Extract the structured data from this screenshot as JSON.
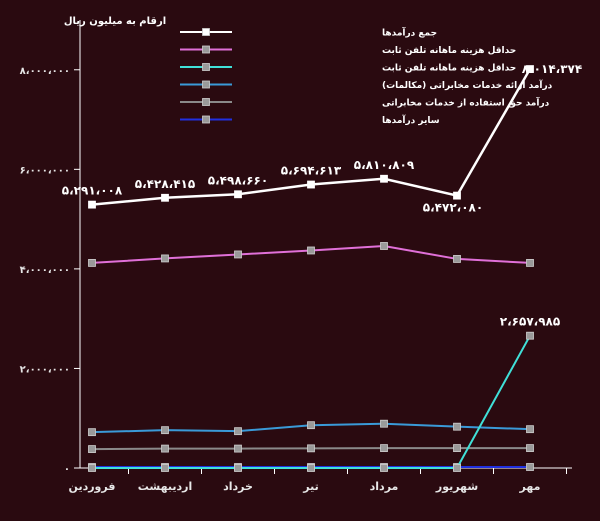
{
  "chart_data": {
    "type": "line",
    "unit_label": "ارقام به میلیون ریال",
    "categories": [
      "فروردین",
      "اردیبهشت",
      "خرداد",
      "تیر",
      "مرداد",
      "شهریور",
      "مهر"
    ],
    "ylim": [
      0,
      9000000
    ],
    "y_ticks": [
      {
        "value": 0,
        "label": "۰"
      },
      {
        "value": 2000000,
        "label": "۲،۰۰۰،۰۰۰"
      },
      {
        "value": 4000000,
        "label": "۴،۰۰۰،۰۰۰"
      },
      {
        "value": 6000000,
        "label": "۶،۰۰۰،۰۰۰"
      },
      {
        "value": 8000000,
        "label": "۸،۰۰۰،۰۰۰"
      }
    ],
    "legend_position": "top-right",
    "series": [
      {
        "name": "جمع درآمدها",
        "color": "#ffffff",
        "values": [
          5291008,
          5428415,
          5498660,
          5694613,
          5810809,
          5472080,
          8014374
        ],
        "labels": [
          "۵،۲۹۱،۰۰۸",
          "۵،۴۲۸،۴۱۵",
          "۵،۴۹۸،۶۶۰",
          "۵،۶۹۴،۶۱۳",
          "۵،۸۱۰،۸۰۹",
          "۵،۴۷۲،۰۸۰",
          "۸،۰۱۴،۳۷۴"
        ]
      },
      {
        "name": "حداقل هزینه ماهانه تلفن ثابت",
        "color": "#e070d8",
        "values": [
          4120000,
          4210000,
          4290000,
          4370000,
          4460000,
          4200000,
          4120000
        ]
      },
      {
        "name": "حداقل هزینه ماهانه تلفن ثابت",
        "color": "#40e0d8",
        "values": [
          0,
          0,
          0,
          0,
          0,
          0,
          2657985
        ],
        "labels": [
          "",
          "",
          "",
          "",
          "",
          "",
          "۲،۶۵۷،۹۸۵"
        ]
      },
      {
        "name": "درآمد ارائه خدمات مخابراتی (مکالمات)",
        "color": "#3a9ad8",
        "values": [
          720000,
          760000,
          740000,
          860000,
          890000,
          830000,
          780000
        ]
      },
      {
        "name": "درآمد حق استفاده از خدمات مخابراتی",
        "color": "#8a8a8a",
        "values": [
          380000,
          390000,
          390000,
          395000,
          400000,
          400000,
          400000
        ]
      },
      {
        "name": "سایر درآمدها",
        "color": "#2030e0",
        "values": [
          20000,
          20000,
          20000,
          20000,
          20000,
          20000,
          20000
        ]
      }
    ]
  }
}
